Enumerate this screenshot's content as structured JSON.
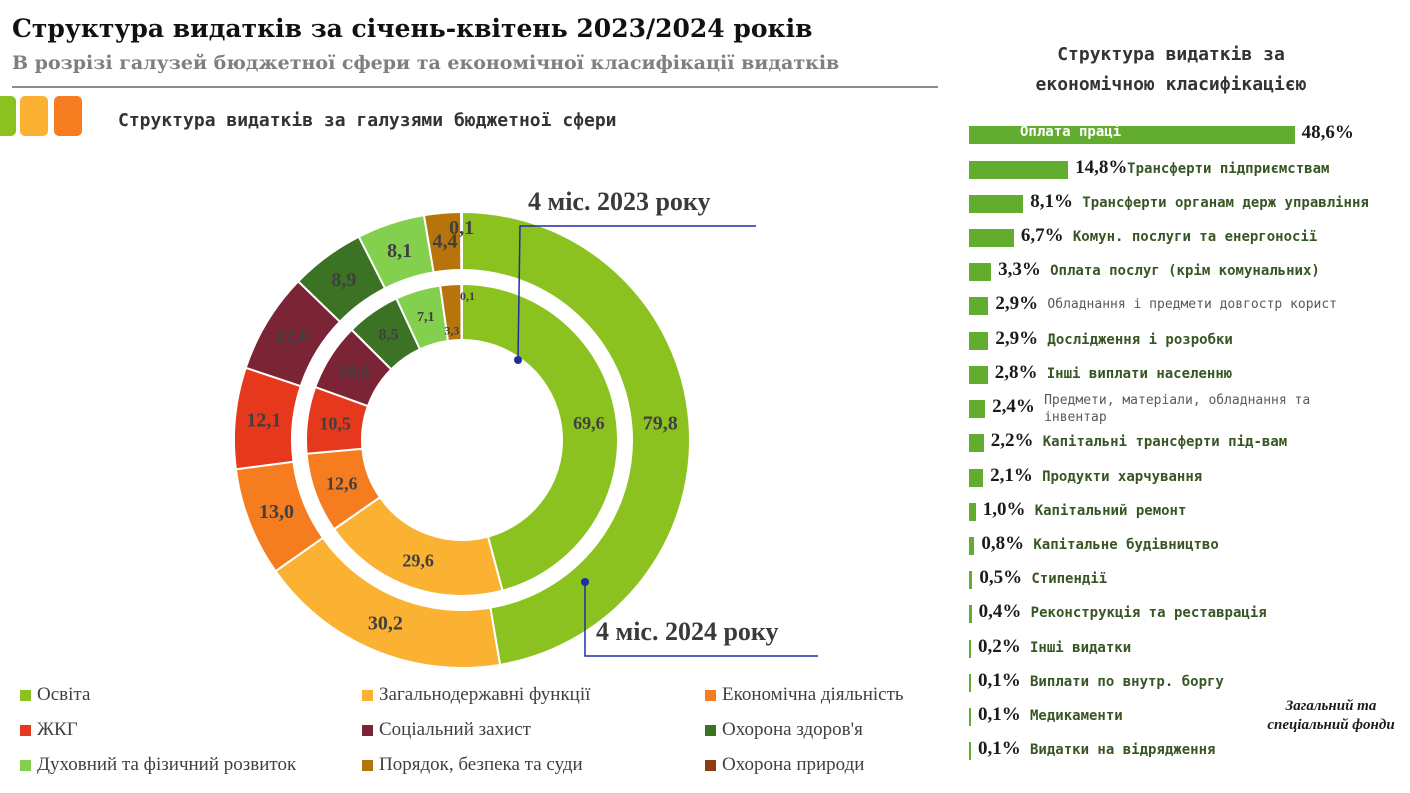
{
  "title": "Структура видатків за січень-квітень 2023/2024 років",
  "subtitle": "В розрізі галузей бюджетної сфери та економічної класифікації видатків",
  "colors": {
    "accent_lime": "#8cc21f",
    "accent_orange_light": "#fbb232",
    "accent_orange": "#f57c1f",
    "bar_green": "#62ad30"
  },
  "left_heading": "Структура видатків за галузями бюджетної сфери",
  "right_heading_line1": "Структура видатків за",
  "right_heading_line2": "економічною класифікацією",
  "fund_note_line1": "Загальний та",
  "fund_note_line2": "спеціальний фонди",
  "chart_data": [
    {
      "type": "pie",
      "subtype": "donut",
      "title": "Структура видатків за галузями бюджетної сфери",
      "categories": [
        "Освіта",
        "Загальнодержавні функції",
        "Економічна діяльність",
        "ЖКГ",
        "Соціальний захист",
        "Охорона здоров'я",
        "Духовний та фізичний розвиток",
        "Порядок, безпека та суди",
        "Охорона природи"
      ],
      "colors": [
        "#8cc21f",
        "#fbb232",
        "#f57c1f",
        "#e5381c",
        "#7a2436",
        "#3b7224",
        "#82d04e",
        "#b7740b",
        "#8a3d10"
      ],
      "series": [
        {
          "name": "4 міс. 2023 року",
          "ring": "inner",
          "values": [
            69.6,
            29.6,
            12.6,
            10.5,
            10.6,
            8.5,
            7.1,
            3.3,
            0.1
          ],
          "labels": [
            "69,6",
            "29,6",
            "12,6",
            "10,5",
            "10,6",
            "8,5",
            "7,1",
            "3,3",
            "0,1"
          ]
        },
        {
          "name": "4 міс. 2024 року",
          "ring": "outer",
          "values": [
            79.8,
            30.2,
            13.0,
            12.1,
            12.0,
            8.9,
            8.1,
            4.4,
            0.1
          ],
          "labels": [
            "79,8",
            "30,2",
            "13,0",
            "12,1",
            "12,0",
            "8,9",
            "8,1",
            "4,4",
            "0,1"
          ]
        }
      ]
    },
    {
      "type": "bar",
      "orientation": "horizontal",
      "title": "Структура видатків за економічною класифікацією",
      "categories": [
        "Оплата праці",
        "Трансферти підприємствам",
        "Трансферти органам держ управління",
        "Комун. послуги та енергоносії",
        "Оплата послуг (крім комунальних)",
        "Обладнання і предмети довгостр корист",
        "Дослідження і розробки",
        "Інші виплати населенню",
        "Предмети, матеріали, обладнання та інвентар",
        "Капітальні трансферти під-вам",
        "Продукти харчування",
        "Капітальний ремонт",
        "Капітальне будівництво",
        "Стипендії",
        "Реконструкція та реставрація",
        "Інші видатки",
        "Виплати по внутр. боргу",
        "Медикаменти",
        "Видатки на відрядження"
      ],
      "values": [
        48.6,
        14.8,
        8.1,
        6.7,
        3.3,
        2.9,
        2.9,
        2.8,
        2.4,
        2.2,
        2.1,
        1.0,
        0.8,
        0.5,
        0.4,
        0.2,
        0.1,
        0.1,
        0.1
      ],
      "value_labels": [
        "48,6%",
        "14,8%",
        "8,1%",
        "6,7%",
        "3,3%",
        "2,9%",
        "2,9%",
        "2,8%",
        "2,4%",
        "2,2%",
        "2,1%",
        "1,0%",
        "0,8%",
        "0,5%",
        "0,4%",
        "0,2%",
        "0,1%",
        "0,1%",
        "0,1%"
      ],
      "unit": "%"
    }
  ]
}
